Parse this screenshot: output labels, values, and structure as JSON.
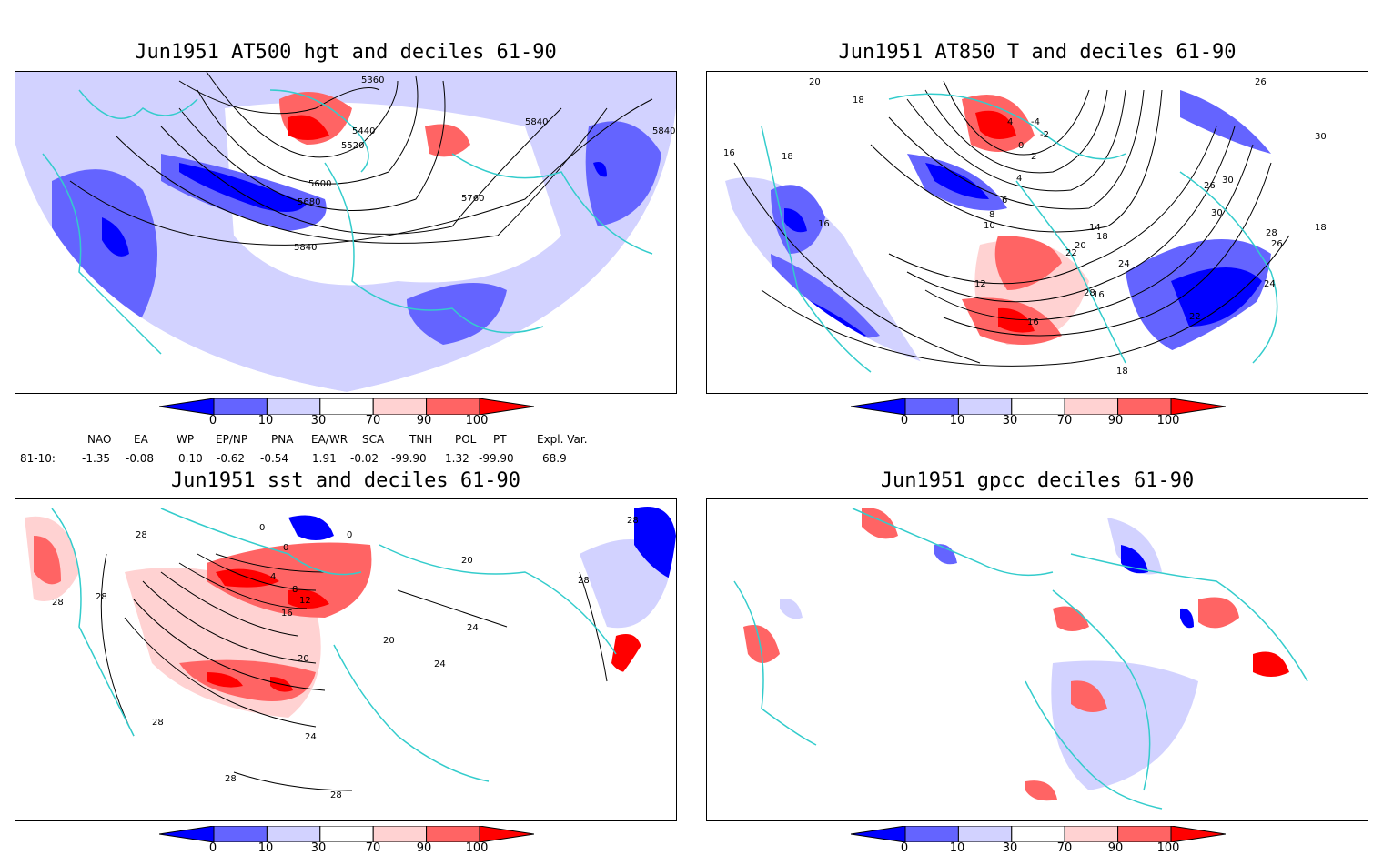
{
  "panels": [
    {
      "title": "Jun1951 AT500 hgt and deciles 61-90",
      "contour_labels": [
        "5360",
        "5440",
        "5520",
        "5600",
        "5680",
        "5760",
        "5840",
        "5840",
        "5840"
      ]
    },
    {
      "title": "Jun1951 AT850 T and deciles 61-90",
      "contour_labels": [
        "20",
        "18",
        "16",
        "18",
        "16",
        "4",
        "-4",
        "-2",
        "0",
        "2",
        "4",
        "6",
        "8",
        "10",
        "12",
        "14",
        "18",
        "20",
        "22",
        "24",
        "26",
        "28",
        "30",
        "30",
        "28",
        "26",
        "24",
        "22",
        "18",
        "18",
        "16",
        "16",
        "26",
        "30"
      ]
    },
    {
      "title": "Jun1951 sst and deciles 61-90",
      "contour_labels": [
        "28",
        "28",
        "28",
        "0",
        "0",
        "0",
        "4",
        "8",
        "12",
        "16",
        "20",
        "24",
        "24",
        "28",
        "28",
        "20",
        "20",
        "28",
        "28",
        "24",
        "28"
      ]
    },
    {
      "title": "Jun1951 gpcc deciles 61-90",
      "contour_labels": []
    }
  ],
  "colorbar": {
    "labels": [
      "0",
      "10",
      "30",
      "70",
      "90",
      "100"
    ],
    "colors": [
      "#0000ff",
      "#6464ff",
      "#d2d2ff",
      "#ffffff",
      "#ffd2d2",
      "#ff6464",
      "#ff0000"
    ]
  },
  "indices": {
    "headers": [
      "NAO",
      "EA",
      "WP",
      "EP/NP",
      "PNA",
      "EA/WR",
      "SCA",
      "TNH",
      "POL",
      "PT",
      "Expl. Var."
    ],
    "row_label": "81-10:",
    "values": [
      "-1.35",
      "-0.08",
      "0.10",
      "-0.62",
      "-0.54",
      "1.91",
      "-0.02",
      "-99.90",
      "1.32",
      "-99.90",
      "68.9"
    ]
  },
  "map_colors": {
    "coast": "#33cccc",
    "contour": "#000000",
    "grid": "#999999"
  }
}
